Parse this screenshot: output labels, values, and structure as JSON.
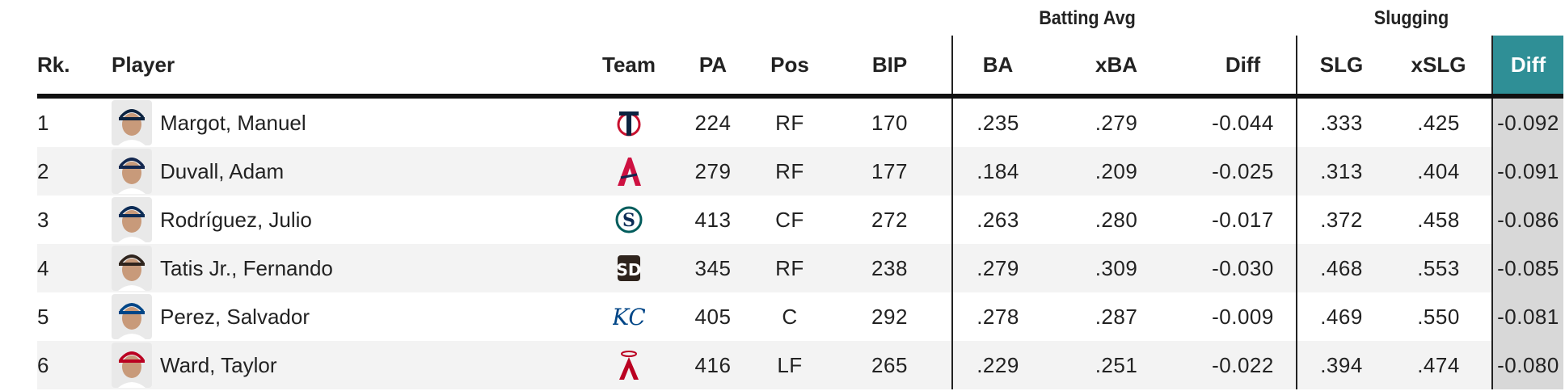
{
  "group_headers": {
    "batting_avg": "Batting Avg",
    "slugging": "Slugging"
  },
  "columns": {
    "rank": "Rk.",
    "player": "Player",
    "team": "Team",
    "pa": "PA",
    "pos": "Pos",
    "bip": "BIP",
    "ba": "BA",
    "xba": "xBA",
    "ba_diff": "Diff",
    "slg": "SLG",
    "xslg": "xSLG",
    "slg_diff": "Diff"
  },
  "sorted_column_color": "#2f8f96",
  "rows": [
    {
      "rank": "1",
      "player": "Margot, Manuel",
      "team_logo": "twins-logo",
      "pa": "224",
      "pos": "RF",
      "bip": "170",
      "ba": ".235",
      "xba": ".279",
      "ba_diff": "-0.044",
      "slg": ".333",
      "xslg": ".425",
      "slg_diff": "-0.092"
    },
    {
      "rank": "2",
      "player": "Duvall, Adam",
      "team_logo": "braves-logo",
      "pa": "279",
      "pos": "RF",
      "bip": "177",
      "ba": ".184",
      "xba": ".209",
      "ba_diff": "-0.025",
      "slg": ".313",
      "xslg": ".404",
      "slg_diff": "-0.091"
    },
    {
      "rank": "3",
      "player": "Rodríguez, Julio",
      "team_logo": "mariners-logo",
      "pa": "413",
      "pos": "CF",
      "bip": "272",
      "ba": ".263",
      "xba": ".280",
      "ba_diff": "-0.017",
      "slg": ".372",
      "xslg": ".458",
      "slg_diff": "-0.086"
    },
    {
      "rank": "4",
      "player": "Tatis Jr., Fernando",
      "team_logo": "padres-logo",
      "pa": "345",
      "pos": "RF",
      "bip": "238",
      "ba": ".279",
      "xba": ".309",
      "ba_diff": "-0.030",
      "slg": ".468",
      "xslg": ".553",
      "slg_diff": "-0.085"
    },
    {
      "rank": "5",
      "player": "Perez, Salvador",
      "team_logo": "royals-logo",
      "pa": "405",
      "pos": "C",
      "bip": "292",
      "ba": ".278",
      "xba": ".287",
      "ba_diff": "-0.009",
      "slg": ".469",
      "xslg": ".550",
      "slg_diff": "-0.081"
    },
    {
      "rank": "6",
      "player": "Ward, Taylor",
      "team_logo": "angels-logo",
      "pa": "416",
      "pos": "LF",
      "bip": "265",
      "ba": ".229",
      "xba": ".251",
      "ba_diff": "-0.022",
      "slg": ".394",
      "xslg": ".474",
      "slg_diff": "-0.080"
    }
  ]
}
